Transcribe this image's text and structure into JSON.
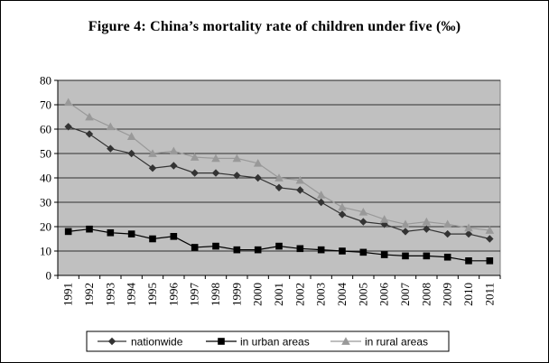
{
  "chart_data": {
    "type": "line",
    "title": "Figure 4:   China’s mortality rate of children under five (‰)",
    "x": [
      "1991",
      "1992",
      "1993",
      "1994",
      "1995",
      "1996",
      "1997",
      "1998",
      "1999",
      "2000",
      "2001",
      "2002",
      "2003",
      "2004",
      "2005",
      "2006",
      "2007",
      "2008",
      "2009",
      "2010",
      "2011"
    ],
    "series": [
      {
        "name": "nationwide",
        "marker": "diamond",
        "color": "#333333",
        "values": [
          61.0,
          58.0,
          52.0,
          50.0,
          44.0,
          45.0,
          42.0,
          42.0,
          41.0,
          40.0,
          36.0,
          35.0,
          30.0,
          25.0,
          22.0,
          21.0,
          18.0,
          19.0,
          17.0,
          17.0,
          15.0
        ]
      },
      {
        "name": "in urban areas",
        "marker": "square",
        "color": "#000000",
        "values": [
          18.0,
          19.0,
          17.5,
          17.0,
          15.0,
          16.0,
          11.5,
          12.0,
          10.5,
          10.5,
          12.0,
          11.0,
          10.5,
          10.0,
          9.5,
          8.5,
          8.0,
          8.0,
          7.5,
          6.0,
          6.0
        ]
      },
      {
        "name": "in rural areas",
        "marker": "triangle",
        "color": "#999999",
        "values": [
          71.0,
          65.0,
          61.0,
          57.0,
          50.0,
          51.0,
          48.5,
          48.0,
          48.0,
          46.0,
          40.0,
          39.0,
          33.0,
          28.0,
          26.0,
          23.0,
          21.0,
          22.0,
          21.0,
          19.5,
          18.5
        ]
      }
    ],
    "yticks": [
      "0",
      "10",
      "20",
      "30",
      "40",
      "50",
      "60",
      "70",
      "80"
    ],
    "ylim": [
      0,
      80
    ],
    "grid": true,
    "legend_position": "bottom",
    "plot_background": "#C0C0C0"
  }
}
